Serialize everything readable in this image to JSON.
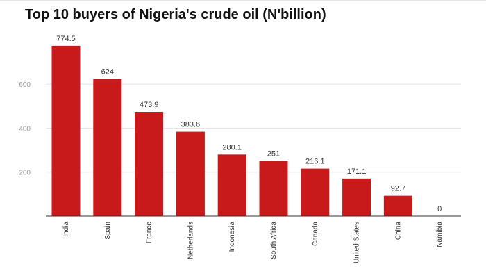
{
  "chart_data": {
    "type": "bar",
    "title": "Top 10 buyers of Nigeria's crude oil (N'billion)",
    "categories": [
      "India",
      "Spain",
      "France",
      "Netherlands",
      "Indonesia",
      "South Africa",
      "Canada",
      "United States",
      "China",
      "Namibia"
    ],
    "values": [
      774.5,
      624,
      473.9,
      383.6,
      280.1,
      251,
      216.1,
      171.1,
      92.7,
      0
    ],
    "data_labels": [
      "774.5",
      "624",
      "473.9",
      "383.6",
      "280.1",
      "251",
      "216.1",
      "171.1",
      "92.7",
      "0"
    ],
    "y_ticks": [
      200,
      400,
      600
    ],
    "y_tick_labels": [
      "200",
      "400",
      "600"
    ],
    "ylim": [
      0,
      800
    ],
    "grid": true,
    "legend": "none",
    "bar_color": "#c8191b"
  }
}
